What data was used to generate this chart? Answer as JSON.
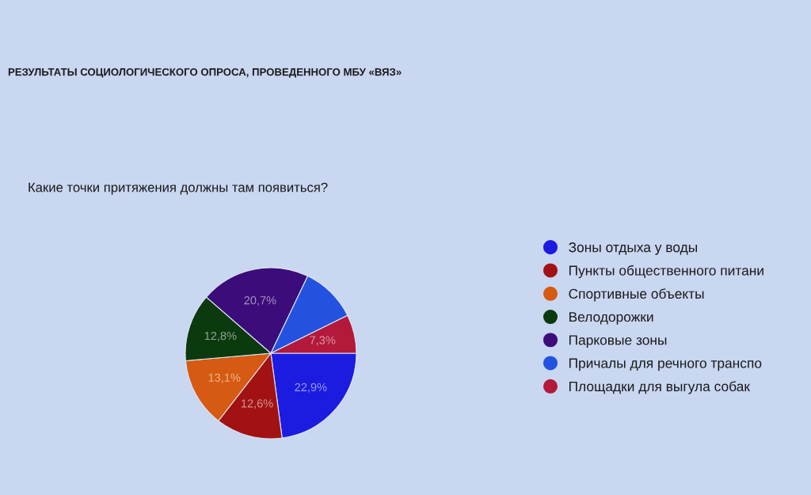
{
  "chart_data": {
    "type": "pie",
    "title": "РЕЗУЛЬТАТЫ СОЦИОЛОГИЧЕСКОГО ОПРОСА, ПРОВЕДЕННОГО МБУ «ВЯЗ»",
    "subtitle": "Какие точки притяжения должны там появиться?",
    "categories": [
      "Зоны отдыха у воды",
      "Пункты общественного питани",
      "Спортивные объекты",
      "Велодорожки",
      "Парковые зоны",
      "Причалы для речного транспо",
      "Площадки для выгула собак"
    ],
    "values": [
      22.9,
      12.6,
      13.1,
      12.8,
      20.7,
      10.6,
      7.3
    ],
    "value_labels": [
      "22,9%",
      "12,6%",
      "13,1%",
      "12,8%",
      "20,7%",
      null,
      "7,3%"
    ],
    "colors": [
      "#1c1ce0",
      "#a21212",
      "#d65a12",
      "#0b3a0e",
      "#3c0c7a",
      "#2452e0",
      "#b2193a"
    ],
    "legend": "right"
  }
}
